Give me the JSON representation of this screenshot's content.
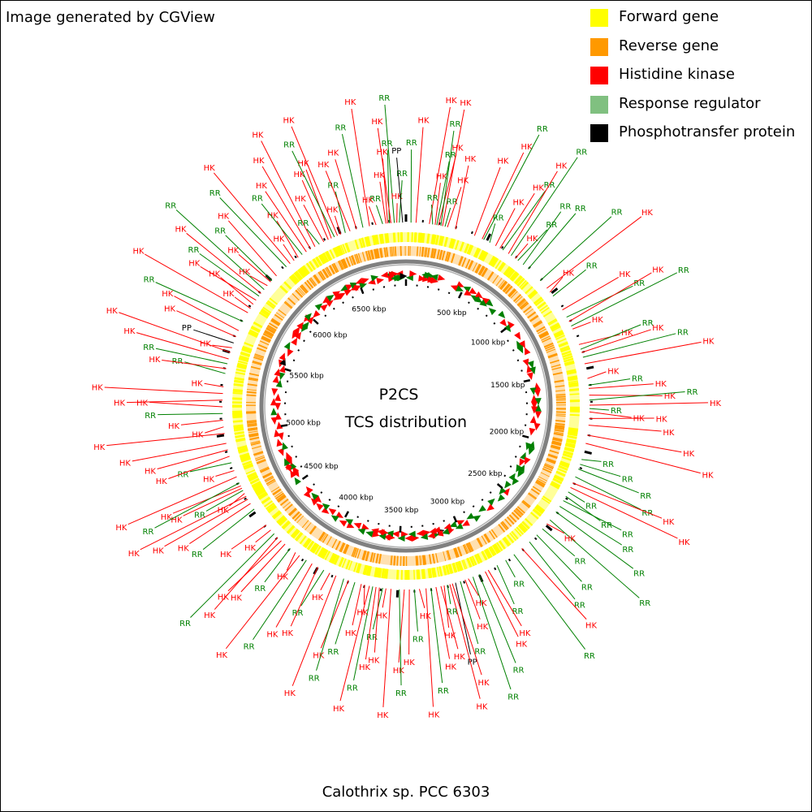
{
  "credit": "Image generated by CGView",
  "center_title": "P2CS",
  "center_subtitle": "TCS distribution",
  "organism": "Calothrix sp. PCC 6303",
  "legend": [
    {
      "label": "Forward gene",
      "color": "#ffff00"
    },
    {
      "label": "Reverse gene",
      "color": "#ff9900"
    },
    {
      "label": "Histidine kinase",
      "color": "#ff0000"
    },
    {
      "label": "Response regulator",
      "color": "#80c080"
    },
    {
      "label": "Phosphotransfer protein",
      "color": "#000000"
    }
  ],
  "colors": {
    "forward": "#ffff00",
    "reverse": "#ff9900",
    "hk": "#ff0000",
    "rr": "#80c080",
    "rr_text": "#008000",
    "pp": "#000000",
    "backbone": "#808080"
  },
  "genome_length_kbp": 6900,
  "scale_labels": [
    "500 kbp",
    "1000 kbp",
    "1500 kbp",
    "2000 kbp",
    "2500 kbp",
    "3000 kbp",
    "3500 kbp",
    "4000 kbp",
    "4500 kbp",
    "5000 kbp",
    "5500 kbp",
    "6000 kbp",
    "6500 kbp"
  ],
  "feature_labels": {
    "hk": "HK",
    "rr": "RR",
    "pp": "PP"
  },
  "features": [
    {
      "type": "RR",
      "pos_kbp": 6760
    },
    {
      "type": "HK",
      "pos_kbp": 6780
    },
    {
      "type": "HK",
      "pos_kbp": 6790
    },
    {
      "type": "RR",
      "pos_kbp": 6800
    },
    {
      "type": "HK",
      "pos_kbp": 6810
    },
    {
      "type": "RR",
      "pos_kbp": 6830
    },
    {
      "type": "HK",
      "pos_kbp": 6845
    },
    {
      "type": "RR",
      "pos_kbp": 6860
    },
    {
      "type": "PP",
      "pos_kbp": 6880
    },
    {
      "type": "RR",
      "pos_kbp": 30
    },
    {
      "type": "HK",
      "pos_kbp": 60
    },
    {
      "type": "HK",
      "pos_kbp": 140
    },
    {
      "type": "RR",
      "pos_kbp": 160
    },
    {
      "type": "HK",
      "pos_kbp": 175
    },
    {
      "type": "RR",
      "pos_kbp": 185
    },
    {
      "type": "HK",
      "pos_kbp": 195
    },
    {
      "type": "RR",
      "pos_kbp": 210
    },
    {
      "type": "HK",
      "pos_kbp": 220
    },
    {
      "type": "RR",
      "pos_kbp": 235
    },
    {
      "type": "HK",
      "pos_kbp": 250
    },
    {
      "type": "HK",
      "pos_kbp": 300
    },
    {
      "type": "HK",
      "pos_kbp": 420
    },
    {
      "type": "HK",
      "pos_kbp": 470
    },
    {
      "type": "RR",
      "pos_kbp": 480
    },
    {
      "type": "RR",
      "pos_kbp": 520
    },
    {
      "type": "HK",
      "pos_kbp": 560
    },
    {
      "type": "HK",
      "pos_kbp": 590
    },
    {
      "type": "RR",
      "pos_kbp": 610
    },
    {
      "type": "HK",
      "pos_kbp": 650
    },
    {
      "type": "RR",
      "pos_kbp": 670
    },
    {
      "type": "HK",
      "pos_kbp": 700
    },
    {
      "type": "RR",
      "pos_kbp": 720
    },
    {
      "type": "RR",
      "pos_kbp": 760
    },
    {
      "type": "RR",
      "pos_kbp": 800
    },
    {
      "type": "RR",
      "pos_kbp": 900
    },
    {
      "type": "HK",
      "pos_kbp": 960
    },
    {
      "type": "HK",
      "pos_kbp": 990
    },
    {
      "type": "RR",
      "pos_kbp": 1020
    },
    {
      "type": "HK",
      "pos_kbp": 1120
    },
    {
      "type": "RR",
      "pos_kbp": 1170
    },
    {
      "type": "HK",
      "pos_kbp": 1200
    },
    {
      "type": "RR",
      "pos_kbp": 1230
    },
    {
      "type": "HK",
      "pos_kbp": 1250
    },
    {
      "type": "HK",
      "pos_kbp": 1350
    },
    {
      "type": "RR",
      "pos_kbp": 1380
    },
    {
      "type": "HK",
      "pos_kbp": 1400
    },
    {
      "type": "RR",
      "pos_kbp": 1430
    },
    {
      "type": "HK",
      "pos_kbp": 1470
    },
    {
      "type": "HK",
      "pos_kbp": 1560
    },
    {
      "type": "RR",
      "pos_kbp": 1600
    },
    {
      "type": "HK",
      "pos_kbp": 1620
    },
    {
      "type": "HK",
      "pos_kbp": 1660
    },
    {
      "type": "RR",
      "pos_kbp": 1690
    },
    {
      "type": "HK",
      "pos_kbp": 1720
    },
    {
      "type": "RR",
      "pos_kbp": 1740
    },
    {
      "type": "HK",
      "pos_kbp": 1760
    },
    {
      "type": "HK",
      "pos_kbp": 1800
    },
    {
      "type": "HK",
      "pos_kbp": 1840
    },
    {
      "type": "HK",
      "pos_kbp": 1900
    },
    {
      "type": "HK",
      "pos_kbp": 1950
    },
    {
      "type": "RR",
      "pos_kbp": 2050
    },
    {
      "type": "RR",
      "pos_kbp": 2080
    },
    {
      "type": "RR",
      "pos_kbp": 2110
    },
    {
      "type": "RR",
      "pos_kbp": 2160
    },
    {
      "type": "HK",
      "pos_kbp": 2200
    },
    {
      "type": "HK",
      "pos_kbp": 2230
    },
    {
      "type": "RR",
      "pos_kbp": 2260
    },
    {
      "type": "RR",
      "pos_kbp": 2290
    },
    {
      "type": "RR",
      "pos_kbp": 2320
    },
    {
      "type": "RR",
      "pos_kbp": 2360
    },
    {
      "type": "RR",
      "pos_kbp": 2400
    },
    {
      "type": "RR",
      "pos_kbp": 2460
    },
    {
      "type": "HK",
      "pos_kbp": 2490
    },
    {
      "type": "RR",
      "pos_kbp": 2530
    },
    {
      "type": "RR",
      "pos_kbp": 2580
    },
    {
      "type": "RR",
      "pos_kbp": 2640
    },
    {
      "type": "HK",
      "pos_kbp": 2700
    },
    {
      "type": "RR",
      "pos_kbp": 2760
    },
    {
      "type": "RR",
      "pos_kbp": 2820
    },
    {
      "type": "RR",
      "pos_kbp": 2880
    },
    {
      "type": "HK",
      "pos_kbp": 2940
    },
    {
      "type": "HK",
      "pos_kbp": 2960
    },
    {
      "type": "RR",
      "pos_kbp": 3000
    },
    {
      "type": "RR",
      "pos_kbp": 3040
    },
    {
      "type": "HK",
      "pos_kbp": 3070
    },
    {
      "type": "HK",
      "pos_kbp": 3090
    },
    {
      "type": "RR",
      "pos_kbp": 3120
    },
    {
      "type": "PP",
      "pos_kbp": 3150
    },
    {
      "type": "HK",
      "pos_kbp": 3170
    },
    {
      "type": "HK",
      "pos_kbp": 3185
    },
    {
      "type": "RR",
      "pos_kbp": 3200
    },
    {
      "type": "HK",
      "pos_kbp": 3220
    },
    {
      "type": "HK",
      "pos_kbp": 3240
    },
    {
      "type": "HK",
      "pos_kbp": 3270
    },
    {
      "type": "RR",
      "pos_kbp": 3300
    },
    {
      "type": "HK",
      "pos_kbp": 3330
    },
    {
      "type": "HK",
      "pos_kbp": 3370
    },
    {
      "type": "RR",
      "pos_kbp": 3400
    },
    {
      "type": "HK",
      "pos_kbp": 3430
    },
    {
      "type": "HK",
      "pos_kbp": 3460
    },
    {
      "type": "RR",
      "pos_kbp": 3490
    },
    {
      "type": "HK",
      "pos_kbp": 3540
    },
    {
      "type": "HK",
      "pos_kbp": 3570
    },
    {
      "type": "RR",
      "pos_kbp": 3590
    },
    {
      "type": "HK",
      "pos_kbp": 3610
    },
    {
      "type": "HK",
      "pos_kbp": 3630
    },
    {
      "type": "RR",
      "pos_kbp": 3650
    },
    {
      "type": "HK",
      "pos_kbp": 3670
    },
    {
      "type": "HK",
      "pos_kbp": 3700
    },
    {
      "type": "HK",
      "pos_kbp": 3720
    },
    {
      "type": "RR",
      "pos_kbp": 3760
    },
    {
      "type": "HK",
      "pos_kbp": 3800
    },
    {
      "type": "RR",
      "pos_kbp": 3830
    },
    {
      "type": "HK",
      "pos_kbp": 3880
    },
    {
      "type": "HK",
      "pos_kbp": 3920
    },
    {
      "type": "RR",
      "pos_kbp": 3960
    },
    {
      "type": "HK",
      "pos_kbp": 4000
    },
    {
      "type": "HK",
      "pos_kbp": 4040
    },
    {
      "type": "RR",
      "pos_kbp": 4080
    },
    {
      "type": "HK",
      "pos_kbp": 4130
    },
    {
      "type": "HK",
      "pos_kbp": 4160
    },
    {
      "type": "RR",
      "pos_kbp": 4200
    },
    {
      "type": "HK",
      "pos_kbp": 4240
    },
    {
      "type": "HK",
      "pos_kbp": 4270
    },
    {
      "type": "HK",
      "pos_kbp": 4300
    },
    {
      "type": "RR",
      "pos_kbp": 4330
    },
    {
      "type": "HK",
      "pos_kbp": 4360
    },
    {
      "type": "HK",
      "pos_kbp": 4400
    },
    {
      "type": "RR",
      "pos_kbp": 4520
    },
    {
      "type": "HK",
      "pos_kbp": 4560
    },
    {
      "type": "HK",
      "pos_kbp": 4590
    },
    {
      "type": "HK",
      "pos_kbp": 4610
    },
    {
      "type": "HK",
      "pos_kbp": 4630
    },
    {
      "type": "RR",
      "pos_kbp": 4650
    },
    {
      "type": "HK",
      "pos_kbp": 4665
    },
    {
      "type": "HK",
      "pos_kbp": 4680
    },
    {
      "type": "RR",
      "pos_kbp": 4700
    },
    {
      "type": "HK",
      "pos_kbp": 4740
    },
    {
      "type": "HK",
      "pos_kbp": 4780
    },
    {
      "type": "RR",
      "pos_kbp": 4830
    },
    {
      "type": "HK",
      "pos_kbp": 4870
    },
    {
      "type": "HK",
      "pos_kbp": 4910
    },
    {
      "type": "HK",
      "pos_kbp": 4950
    },
    {
      "type": "HK",
      "pos_kbp": 5010
    },
    {
      "type": "HK",
      "pos_kbp": 5050
    },
    {
      "type": "HK",
      "pos_kbp": 5090
    },
    {
      "type": "RR",
      "pos_kbp": 5130
    },
    {
      "type": "HK",
      "pos_kbp": 5170
    },
    {
      "type": "HK",
      "pos_kbp": 5210
    },
    {
      "type": "HK",
      "pos_kbp": 5250
    },
    {
      "type": "HK",
      "pos_kbp": 5290
    },
    {
      "type": "RR",
      "pos_kbp": 5370
    },
    {
      "type": "HK",
      "pos_kbp": 5400
    },
    {
      "type": "RR",
      "pos_kbp": 5430
    },
    {
      "type": "HK",
      "pos_kbp": 5460
    },
    {
      "type": "HK",
      "pos_kbp": 5500
    },
    {
      "type": "HK",
      "pos_kbp": 5530
    },
    {
      "type": "PP",
      "pos_kbp": 5560
    },
    {
      "type": "HK",
      "pos_kbp": 5600
    },
    {
      "type": "HK",
      "pos_kbp": 5640
    },
    {
      "type": "RR",
      "pos_kbp": 5700
    },
    {
      "type": "HK",
      "pos_kbp": 5760
    },
    {
      "type": "HK",
      "pos_kbp": 5790
    },
    {
      "type": "HK",
      "pos_kbp": 5820
    },
    {
      "type": "HK",
      "pos_kbp": 5850
    },
    {
      "type": "RR",
      "pos_kbp": 5880
    },
    {
      "type": "HK",
      "pos_kbp": 5900
    },
    {
      "type": "RR",
      "pos_kbp": 5930
    },
    {
      "type": "HK",
      "pos_kbp": 5960
    },
    {
      "type": "HK",
      "pos_kbp": 5990
    },
    {
      "type": "RR",
      "pos_kbp": 6000
    },
    {
      "type": "HK",
      "pos_kbp": 6040
    },
    {
      "type": "RR",
      "pos_kbp": 6120
    },
    {
      "type": "HK",
      "pos_kbp": 6150
    },
    {
      "type": "HK",
      "pos_kbp": 6180
    },
    {
      "type": "HK",
      "pos_kbp": 6210
    },
    {
      "type": "RR",
      "pos_kbp": 6240
    },
    {
      "type": "HK",
      "pos_kbp": 6270
    },
    {
      "type": "HK",
      "pos_kbp": 6300
    },
    {
      "type": "HK",
      "pos_kbp": 6330
    },
    {
      "type": "RR",
      "pos_kbp": 6360
    },
    {
      "type": "HK",
      "pos_kbp": 6390
    },
    {
      "type": "HK",
      "pos_kbp": 6420
    },
    {
      "type": "HK",
      "pos_kbp": 6440
    },
    {
      "type": "RR",
      "pos_kbp": 6460
    },
    {
      "type": "HK",
      "pos_kbp": 6480
    },
    {
      "type": "HK",
      "pos_kbp": 6500
    },
    {
      "type": "RR",
      "pos_kbp": 6530
    },
    {
      "type": "HK",
      "pos_kbp": 6560
    },
    {
      "type": "HK",
      "pos_kbp": 6600
    },
    {
      "type": "RR",
      "pos_kbp": 6640
    },
    {
      "type": "HK",
      "pos_kbp": 6680
    },
    {
      "type": "HK",
      "pos_kbp": 6720
    }
  ]
}
